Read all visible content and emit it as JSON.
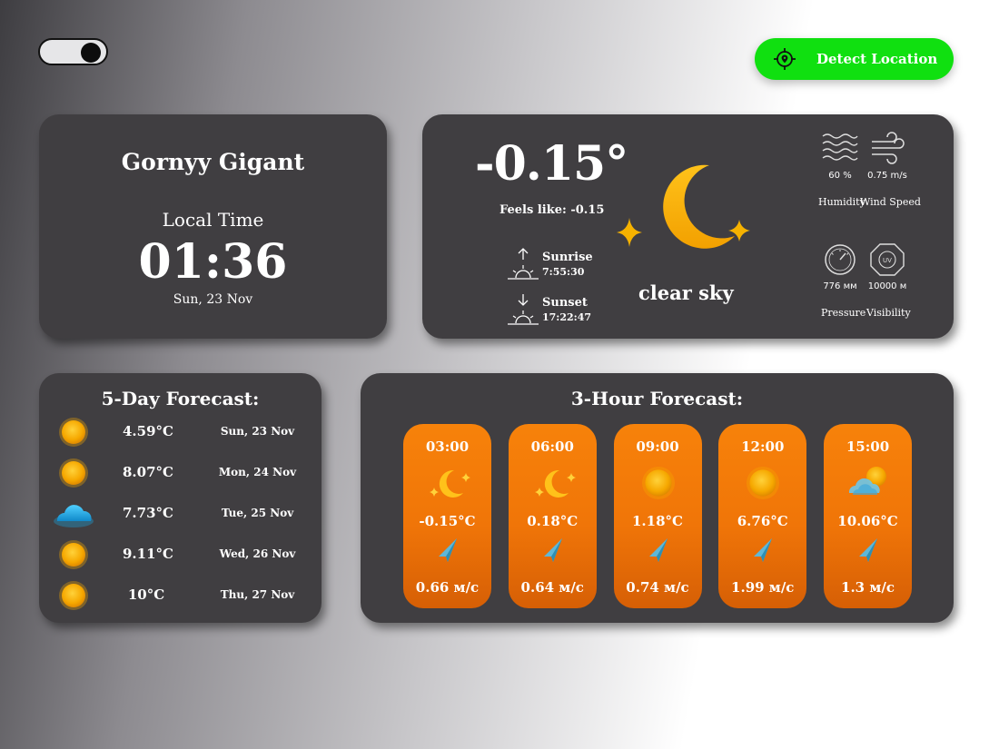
{
  "header": {
    "detect_label": "Detect Location"
  },
  "city": {
    "name": "Gornyy Gigant",
    "local_time_label": "Local Time",
    "time": "01:36",
    "date": "Sun, 23 Nov"
  },
  "current": {
    "temperature": "-0.15°",
    "feels_like": "Feels like: -0.15",
    "sunrise_label": "Sunrise",
    "sunrise_time": "7:55:30",
    "sunset_label": "Sunset",
    "sunset_time": "17:22:47",
    "description": "clear sky",
    "icon": "moon-stars-icon",
    "humidity_value": "60 %",
    "wind_value": "0.75 m/s",
    "humidity_label": "Humidity",
    "wind_label": "Wind Speed",
    "pressure_value": "776 мм",
    "visibility_value": "10000 м",
    "pressure_label": "Pressure",
    "visibility_label": "Visibility"
  },
  "five_day": {
    "title": "5-Day Forecast:",
    "days": [
      {
        "icon": "sun-icon",
        "temp": "4.59°C",
        "date": "Sun, 23 Nov"
      },
      {
        "icon": "sun-icon",
        "temp": "8.07°C",
        "date": "Mon, 24 Nov"
      },
      {
        "icon": "cloud-icon",
        "temp": "7.73°C",
        "date": "Tue, 25 Nov"
      },
      {
        "icon": "sun-icon",
        "temp": "9.11°C",
        "date": "Wed, 26 Nov"
      },
      {
        "icon": "sun-icon",
        "temp": "10°C",
        "date": "Thu, 27 Nov"
      }
    ]
  },
  "three_hour": {
    "title": "3-Hour Forecast:",
    "slots": [
      {
        "time": "03:00",
        "icon": "moon-stars-icon",
        "temp": "-0.15°C",
        "wind": "0.66 м/с"
      },
      {
        "time": "06:00",
        "icon": "moon-stars-icon",
        "temp": "0.18°C",
        "wind": "0.64 м/с"
      },
      {
        "time": "09:00",
        "icon": "sun-icon",
        "temp": "1.18°C",
        "wind": "0.74 м/с"
      },
      {
        "time": "12:00",
        "icon": "sun-icon",
        "temp": "6.76°C",
        "wind": "1.99 м/с"
      },
      {
        "time": "15:00",
        "icon": "partly-cloudy-icon",
        "temp": "10.06°C",
        "wind": "1.3 м/с"
      }
    ]
  },
  "colors": {
    "card": "#403e41",
    "accent_green": "#10e010",
    "hour_card": "#f07508",
    "sun": "#fbb800"
  }
}
